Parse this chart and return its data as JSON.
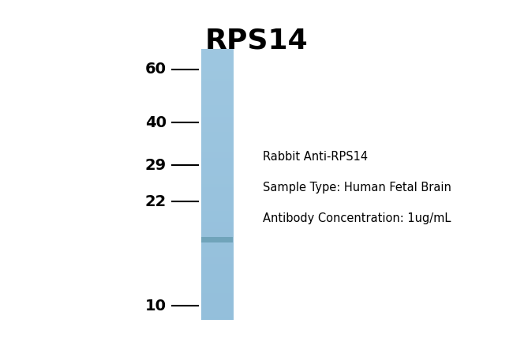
{
  "title": "RPS14",
  "title_fontsize": 26,
  "title_fontweight": "bold",
  "background_color": "#ffffff",
  "ladder_marks": [
    60,
    40,
    29,
    22,
    10
  ],
  "lane_color": "#8bbdd9",
  "band_color": "#6a9fb5",
  "annotation_lines": [
    "Rabbit Anti-RPS14",
    "Sample Type: Human Fetal Brain",
    "Antibody Concentration: 1ug/mL"
  ],
  "annotation_fontsize": 10.5,
  "tick_label_fontsize": 14,
  "tick_label_fontweight": "bold"
}
